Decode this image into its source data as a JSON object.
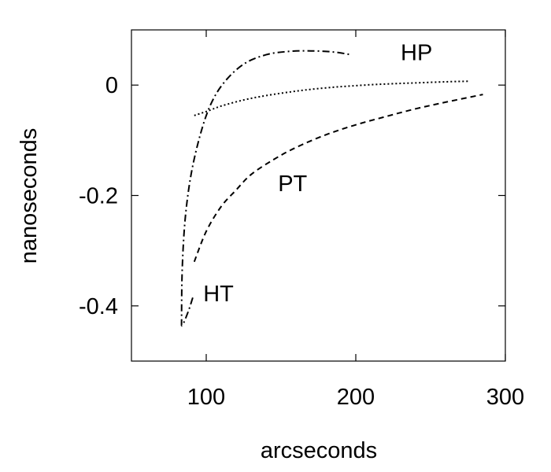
{
  "chart_data": {
    "type": "line",
    "title": "",
    "xlabel": "arcseconds",
    "ylabel": "nanoseconds",
    "xlim": [
      50,
      300
    ],
    "ylim": [
      -0.5,
      0.1
    ],
    "xticks": [
      100,
      200,
      300
    ],
    "xtick_labels": [
      "100",
      "200",
      "300"
    ],
    "yticks": [
      0,
      -0.2,
      -0.4
    ],
    "ytick_labels": [
      "0",
      "-0.2",
      "-0.4"
    ],
    "grid": false,
    "legend": "none",
    "series": [
      {
        "name": "HP",
        "line_style": "dotted",
        "x": [
          92,
          100,
          110,
          125,
          140,
          160,
          180,
          200,
          220,
          240,
          260,
          275
        ],
        "y": [
          -0.055,
          -0.048,
          -0.038,
          -0.027,
          -0.019,
          -0.011,
          -0.005,
          -0.001,
          0.002,
          0.004,
          0.006,
          0.007
        ]
      },
      {
        "name": "PT",
        "line_style": "dashed",
        "x": [
          92,
          100,
          110,
          120,
          130,
          145,
          160,
          180,
          200,
          220,
          240,
          260,
          285
        ],
        "y": [
          -0.32,
          -0.265,
          -0.22,
          -0.19,
          -0.162,
          -0.135,
          -0.113,
          -0.09,
          -0.072,
          -0.057,
          -0.043,
          -0.031,
          -0.017
        ]
      },
      {
        "name": "HT",
        "line_style": "dash-dot",
        "x": [
          91,
          88,
          84,
          83.5,
          84,
          86,
          90,
          96,
          103,
          112,
          125,
          140,
          155,
          170,
          185,
          197
        ],
        "y": [
          -0.385,
          -0.41,
          -0.435,
          -0.42,
          -0.33,
          -0.24,
          -0.16,
          -0.09,
          -0.035,
          0.005,
          0.038,
          0.055,
          0.061,
          0.062,
          0.06,
          0.055
        ]
      }
    ],
    "curve_labels": [
      {
        "text": "HP",
        "x": 230,
        "y": 0.045
      },
      {
        "text": "PT",
        "x": 148,
        "y": -0.192
      },
      {
        "text": "HT",
        "x": 98,
        "y": -0.392
      }
    ]
  }
}
